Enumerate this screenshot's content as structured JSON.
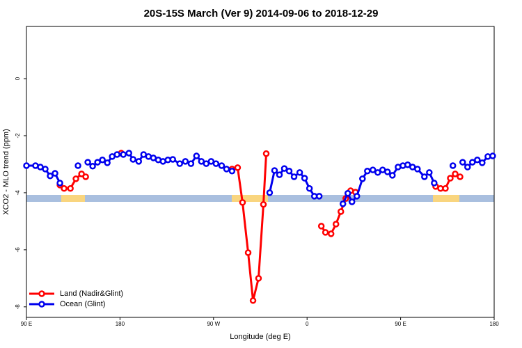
{
  "chart_data": {
    "type": "line",
    "title": "20S-15S March (Ver 9)   2014-09-06 to 2018-12-29",
    "x_label": "Longitude (deg E)",
    "y_label": "XCO2 - MLO trend (ppm)",
    "xlim": [
      90,
      540
    ],
    "xticks": [
      {
        "value": 90,
        "label": "90 E"
      },
      {
        "value": 180,
        "label": "180"
      },
      {
        "value": 270,
        "label": "90 W"
      },
      {
        "value": 360,
        "label": "0"
      },
      {
        "value": 450,
        "label": "90 E"
      },
      {
        "value": 540,
        "label": "180"
      }
    ],
    "ylim": [
      -8.37,
      1.83
    ],
    "yticks": [
      -8,
      -6,
      -4,
      -2,
      0
    ],
    "legend": "bottom-left",
    "series": [
      {
        "name": "Land (Nadir&Glint)",
        "color": "#ff0000",
        "x": [
          122.2,
          126.2,
          132.3,
          137.6,
          143,
          147,
          null,
          181.2,
          null,
          287.8,
          293.2,
          297.9,
          303.3,
          308,
          313.3,
          318,
          320.7,
          null,
          373.7,
          377.7,
          383.1,
          387.8,
          392.5,
          397.2,
          401.9,
          406.6,
          null,
          483.7,
          488.4,
          493.1,
          497.8,
          502.5,
          507.2
        ],
        "values": [
          -3.73,
          -3.85,
          -3.85,
          -3.51,
          -3.34,
          -3.44,
          null,
          -2.61,
          null,
          -3.17,
          -3.12,
          -4.34,
          -6.1,
          -7.78,
          -7.0,
          -4.41,
          -2.63,
          null,
          -5.17,
          -5.39,
          -5.44,
          -5.1,
          -4.66,
          -4.2,
          -3.93,
          -3.98,
          null,
          -3.78,
          -3.85,
          -3.85,
          -3.49,
          -3.34,
          -3.44
        ]
      },
      {
        "name": "Ocean (Glint)",
        "color": "#0000ee",
        "x": [
          90,
          98.7,
          103.4,
          108.1,
          112.8,
          117.5,
          122.2,
          null,
          139.6,
          null,
          149,
          153.7,
          158.4,
          163.1,
          167.8,
          172.5,
          177.2,
          183.2,
          188.6,
          192.6,
          198,
          202.7,
          207.4,
          212.1,
          216.8,
          221.4,
          226.1,
          230.8,
          237.5,
          242.9,
          248.3,
          253.6,
          258.3,
          263,
          267.7,
          272.4,
          277.8,
          282.5,
          287.8,
          null,
          324,
          328.7,
          333.4,
          338.1,
          342.8,
          347.5,
          352.9,
          357.6,
          362.3,
          367,
          371.7,
          null,
          394.5,
          399.2,
          403.2,
          407.9,
          413.3,
          418,
          423.3,
          428,
          432.7,
          437.4,
          442.1,
          447.5,
          452.2,
          456.8,
          461.5,
          466.2,
          472.9,
          477.6,
          482.3,
          null,
          500.3,
          null,
          509.7,
          514.4,
          519.1,
          523.8,
          528.5,
          533.9,
          538.6
        ],
        "values": [
          -3.05,
          -3.05,
          -3.1,
          -3.17,
          -3.41,
          -3.32,
          -3.66,
          null,
          -3.05,
          null,
          -2.93,
          -3.07,
          -2.93,
          -2.85,
          -2.95,
          -2.73,
          -2.66,
          -2.66,
          -2.61,
          -2.83,
          -2.9,
          -2.66,
          -2.73,
          -2.78,
          -2.85,
          -2.9,
          -2.85,
          -2.83,
          -2.98,
          -2.9,
          -2.98,
          -2.71,
          -2.9,
          -2.98,
          -2.9,
          -2.98,
          -3.05,
          -3.17,
          -3.24,
          null,
          -4.0,
          -3.22,
          -3.37,
          -3.15,
          -3.24,
          -3.44,
          -3.29,
          -3.49,
          -3.85,
          -4.12,
          -4.12,
          null,
          -4.39,
          -4.02,
          -4.32,
          -4.12,
          -3.51,
          -3.24,
          -3.2,
          -3.29,
          -3.2,
          -3.27,
          -3.39,
          -3.1,
          -3.05,
          -3.02,
          -3.1,
          -3.17,
          -3.44,
          -3.29,
          -3.66,
          null,
          -3.05,
          null,
          -2.93,
          -3.1,
          -2.93,
          -2.85,
          -2.95,
          -2.73,
          -2.71
        ]
      }
    ]
  }
}
